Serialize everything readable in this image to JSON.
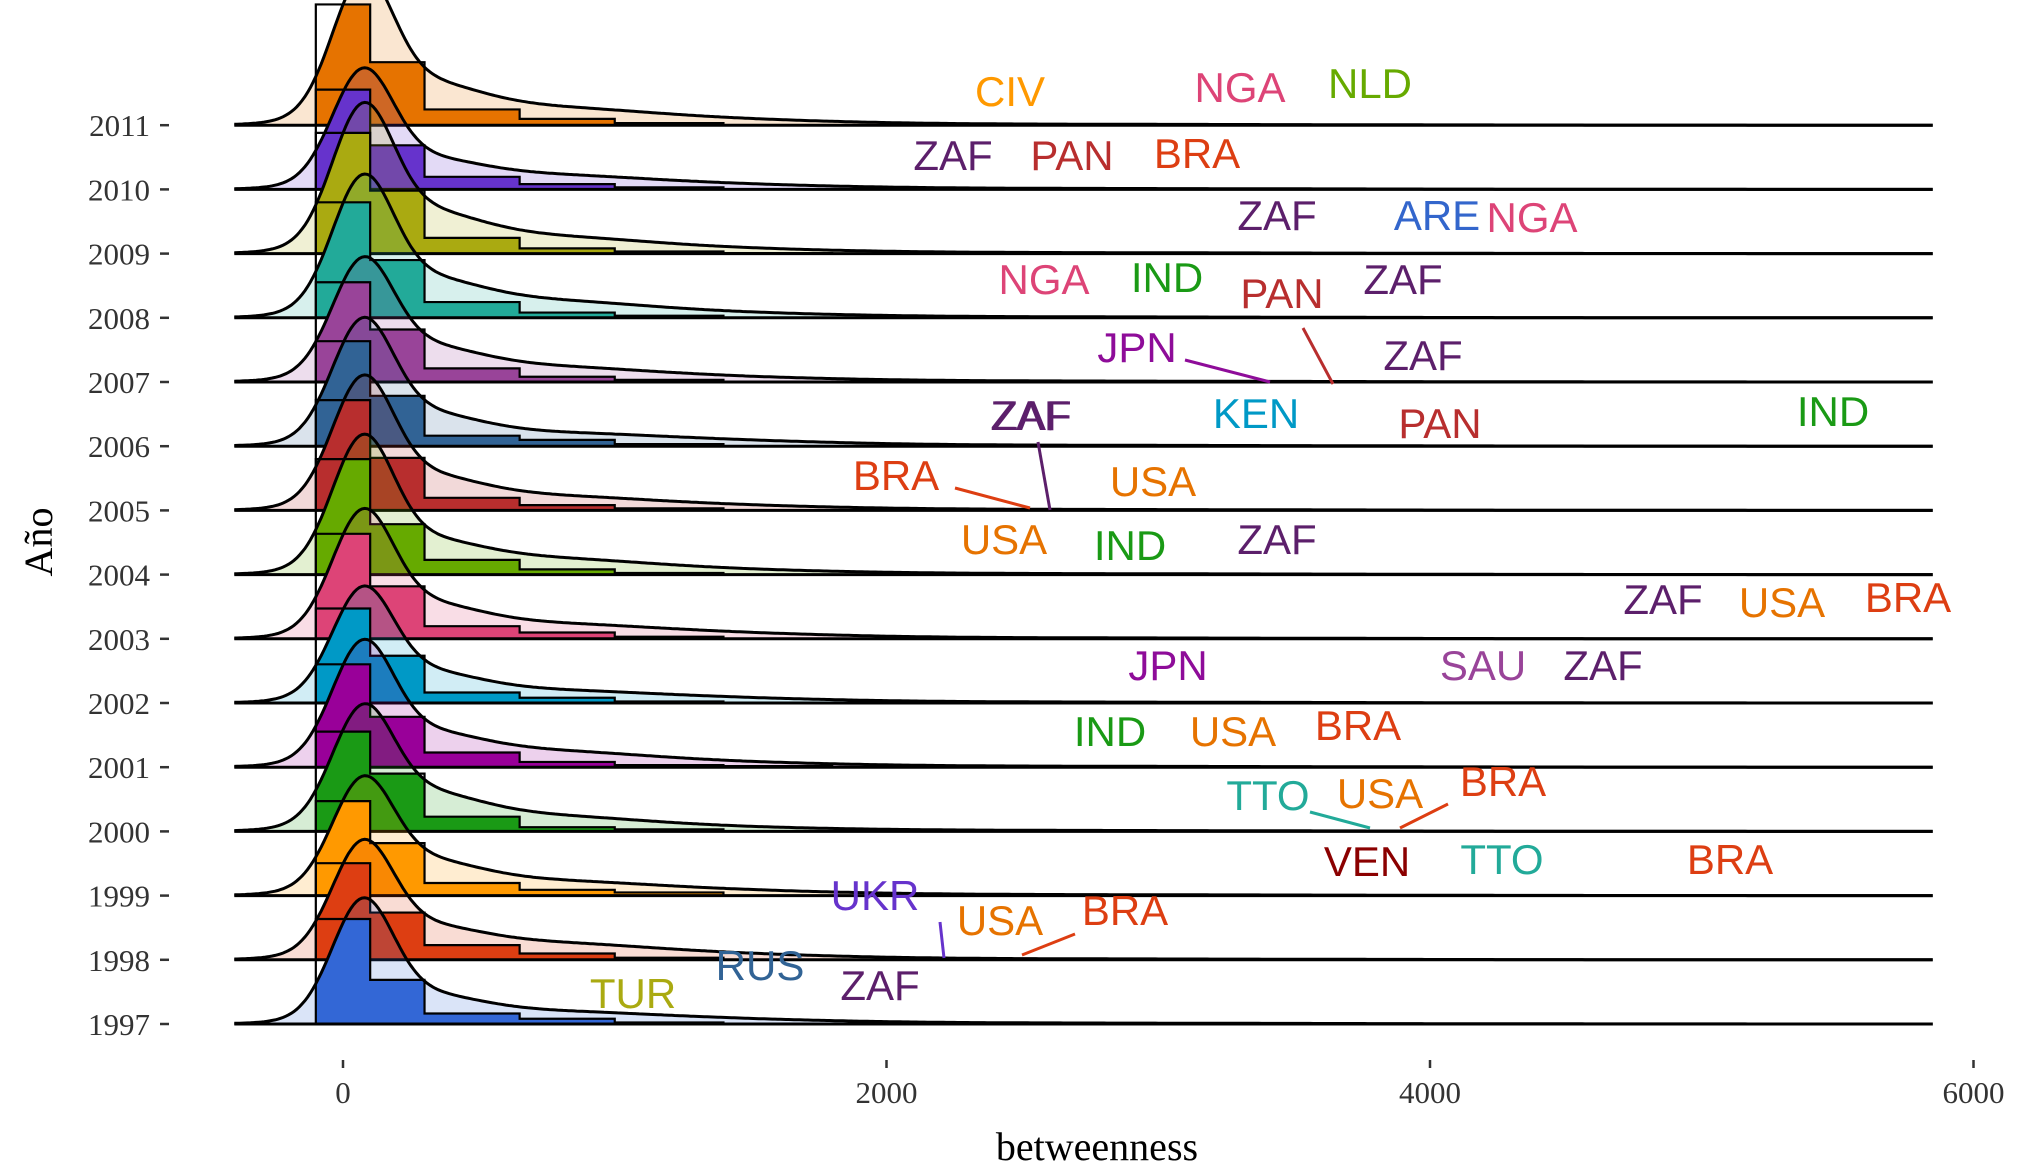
{
  "chart_data": {
    "type": "ridgeline",
    "title": "",
    "xlabel": "betweenness",
    "ylabel": "Año",
    "xlim": [
      -400,
      6000
    ],
    "x_ticks": [
      0,
      2000,
      4000,
      6000
    ],
    "x_tick_labels": [
      "0",
      "2000",
      "4000",
      "6000"
    ],
    "years": [
      "1997",
      "1998",
      "1999",
      "2000",
      "2001",
      "2002",
      "2003",
      "2004",
      "2005",
      "2006",
      "2007",
      "2008",
      "2009",
      "2010",
      "2011"
    ],
    "colors": [
      "#3367d6",
      "#dd3e12",
      "#ff9900",
      "#1a9a15",
      "#990099",
      "#0099c6",
      "#dd4477",
      "#66aa00",
      "#b82e2e",
      "#316395",
      "#994499",
      "#22aa99",
      "#aaaa11",
      "#6633cc",
      "#e67300"
    ],
    "histogram_bins": [
      -100,
      100,
      300,
      650,
      1000,
      1400,
      1800,
      2200
    ],
    "histogram_density": [
      [
        1.0,
        0.42,
        0.1,
        0.05,
        0.015,
        0.0,
        0.0
      ],
      [
        0.92,
        0.45,
        0.14,
        0.06,
        0.02,
        0.0,
        0.0
      ],
      [
        0.9,
        0.5,
        0.12,
        0.055,
        0.03,
        0.0,
        0.0
      ],
      [
        0.95,
        0.55,
        0.14,
        0.04,
        0.02,
        0.0,
        0.0
      ],
      [
        0.98,
        0.48,
        0.14,
        0.05,
        0.02,
        0.01,
        0.0
      ],
      [
        0.9,
        0.45,
        0.1,
        0.05,
        0.015,
        0.0,
        0.0
      ],
      [
        1.0,
        0.5,
        0.12,
        0.06,
        0.02,
        0.0,
        0.0
      ],
      [
        1.1,
        0.48,
        0.14,
        0.05,
        0.015,
        0.0,
        0.0
      ],
      [
        1.05,
        0.5,
        0.12,
        0.05,
        0.02,
        0.0,
        0.0
      ],
      [
        1.0,
        0.48,
        0.1,
        0.06,
        0.02,
        0.0,
        0.0
      ],
      [
        0.95,
        0.5,
        0.13,
        0.05,
        0.02,
        0.0,
        0.0
      ],
      [
        1.1,
        0.55,
        0.15,
        0.05,
        0.02,
        0.0,
        0.0
      ],
      [
        1.15,
        0.6,
        0.15,
        0.05,
        0.02,
        0.005,
        0.0
      ],
      [
        0.95,
        0.42,
        0.12,
        0.05,
        0.02,
        0.0,
        0.0
      ],
      [
        1.15,
        0.6,
        0.15,
        0.06,
        0.02,
        0.0,
        0.0
      ]
    ],
    "outliers": [
      [
        [
          "TUR",
          950
        ],
        [
          "RUS",
          1500
        ],
        [
          "ZAF",
          1800
        ]
      ],
      [
        [
          "UKR",
          2200
        ],
        [
          "USA",
          2500
        ],
        [
          "BRA",
          2500
        ]
      ],
      [
        [
          "VEN",
          3800
        ],
        [
          "TTO",
          4250
        ],
        [
          "BRA",
          5250
        ]
      ],
      [
        [
          "TTO",
          3800
        ],
        [
          "USA",
          3850
        ],
        [
          "BRA",
          3900
        ]
      ],
      [
        [
          "IND",
          2850
        ],
        [
          "USA",
          3300
        ],
        [
          "BRA",
          3750
        ]
      ],
      [
        [
          "JPN",
          3050
        ],
        [
          "SAU",
          4250
        ],
        [
          "ZAF",
          4700
        ]
      ],
      [
        [
          "ZAF",
          5000
        ],
        [
          "USA",
          5300
        ],
        [
          "BRA",
          5700
        ]
      ],
      [
        [
          "USA",
          2400
        ],
        [
          "IND",
          2900
        ],
        [
          "ZAF",
          3450
        ]
      ],
      [
        [
          "BRA",
          2550
        ],
        [
          "ZAF",
          2650
        ],
        [
          "USA",
          3000
        ]
      ],
      [
        [
          "ZAF",
          2400
        ],
        [
          "KEN",
          3300
        ],
        [
          "PAN",
          4000
        ],
        [
          "IND",
          5400
        ]
      ],
      [
        [
          "JPN",
          3450
        ],
        [
          "PAN",
          3650
        ],
        [
          "ZAF",
          4000
        ]
      ],
      [
        [
          "NGA",
          2600
        ],
        [
          "IND",
          3050
        ],
        [
          "ZAF",
          3850
        ]
      ],
      [
        [
          "ZAF",
          3400
        ],
        [
          "ARE",
          3900
        ],
        [
          "NGA",
          4450
        ]
      ],
      [
        [
          "ZAF",
          2400
        ],
        [
          "PAN",
          2700
        ],
        [
          "BRA",
          3200
        ]
      ],
      [
        [
          "CIV",
          2400
        ],
        [
          "NGA",
          3400
        ],
        [
          "NLD",
          3800
        ]
      ]
    ]
  },
  "country_colors": {
    "TUR": "#aaaa11",
    "RUS": "#316395",
    "ZAF": "#5c1f6b",
    "UKR": "#6633cc",
    "USA": "#e67300",
    "BRA": "#dd3e12",
    "VEN": "#8b0000",
    "TTO": "#22aa99",
    "IND": "#1a9a15",
    "JPN": "#8e0c99",
    "SAU": "#994499",
    "KEN": "#0099c6",
    "PAN": "#b82e2e",
    "NGA": "#dd4477",
    "ARE": "#3366cc",
    "CIV": "#ff9900",
    "NLD": "#66aa00"
  }
}
